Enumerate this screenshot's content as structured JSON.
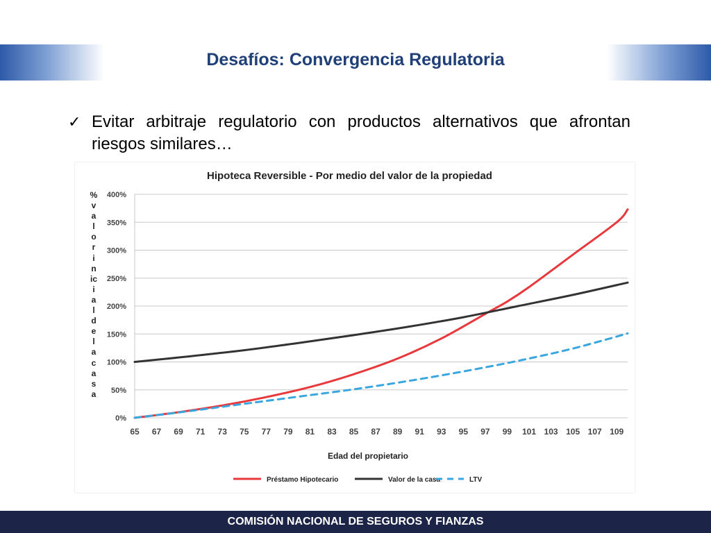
{
  "slide": {
    "title": "Desafíos: Convergencia Regulatoria",
    "bullet": "Evitar arbitraje regulatorio con productos alternativos que afrontan riesgos similares…",
    "footer": "COMISIÓN NACIONAL DE SEGUROS Y FIANZAS"
  },
  "colors": {
    "prestamo": "#e8383b",
    "valor": "#333333",
    "ltv": "#3aa6df",
    "accent": "#1f3f78"
  },
  "chart_data": {
    "type": "line",
    "title": "Hipoteca Reversible - Por medio del valor de la propiedad",
    "xlabel": "Edad del propietario",
    "ylabel": "% valor inicial de la casa",
    "ylabel_chars": [
      "%",
      "v",
      "a",
      "l",
      "o",
      "r",
      "i",
      "n",
      "ic",
      "i",
      "a",
      "l",
      "d",
      "e",
      "l",
      "a",
      "c",
      "a",
      "s",
      "a"
    ],
    "ylim": [
      0,
      400
    ],
    "yticks": [
      "0%",
      "50%",
      "100%",
      "150%",
      "200%",
      "250%",
      "300%",
      "350%",
      "400%"
    ],
    "yticks_values": [
      0,
      50,
      100,
      150,
      200,
      250,
      300,
      350,
      400
    ],
    "xlim": [
      65,
      110
    ],
    "x_ticks": [
      "65",
      "67",
      "69",
      "71",
      "73",
      "75",
      "77",
      "79",
      "81",
      "83",
      "85",
      "87",
      "89",
      "91",
      "93",
      "95",
      "97",
      "99",
      "101",
      "103",
      "105",
      "107",
      "109"
    ],
    "grid": true,
    "legend_position": "bottom",
    "series": [
      {
        "name": "Préstamo Hipotecario",
        "color_key": "prestamo",
        "dash": false,
        "x": [
          65,
          69,
          73,
          77,
          81,
          85,
          89,
          93,
          97,
          99,
          101,
          105,
          109,
          110
        ],
        "y": [
          0,
          10,
          22,
          37,
          55,
          78,
          106,
          142,
          186,
          208,
          234,
          292,
          350,
          373
        ]
      },
      {
        "name": "Valor de la casa",
        "color_key": "valor",
        "dash": false,
        "x": [
          65,
          70,
          75,
          80,
          85,
          90,
          95,
          100,
          105,
          110
        ],
        "y": [
          100,
          110,
          121,
          134,
          148,
          163,
          180,
          200,
          220,
          242
        ]
      },
      {
        "name": "LTV",
        "color_key": "ltv",
        "dash": true,
        "x": [
          65,
          70,
          75,
          80,
          85,
          90,
          95,
          100,
          105,
          110
        ],
        "y": [
          0,
          12,
          25,
          38,
          51,
          66,
          83,
          102,
          124,
          151
        ]
      }
    ]
  }
}
